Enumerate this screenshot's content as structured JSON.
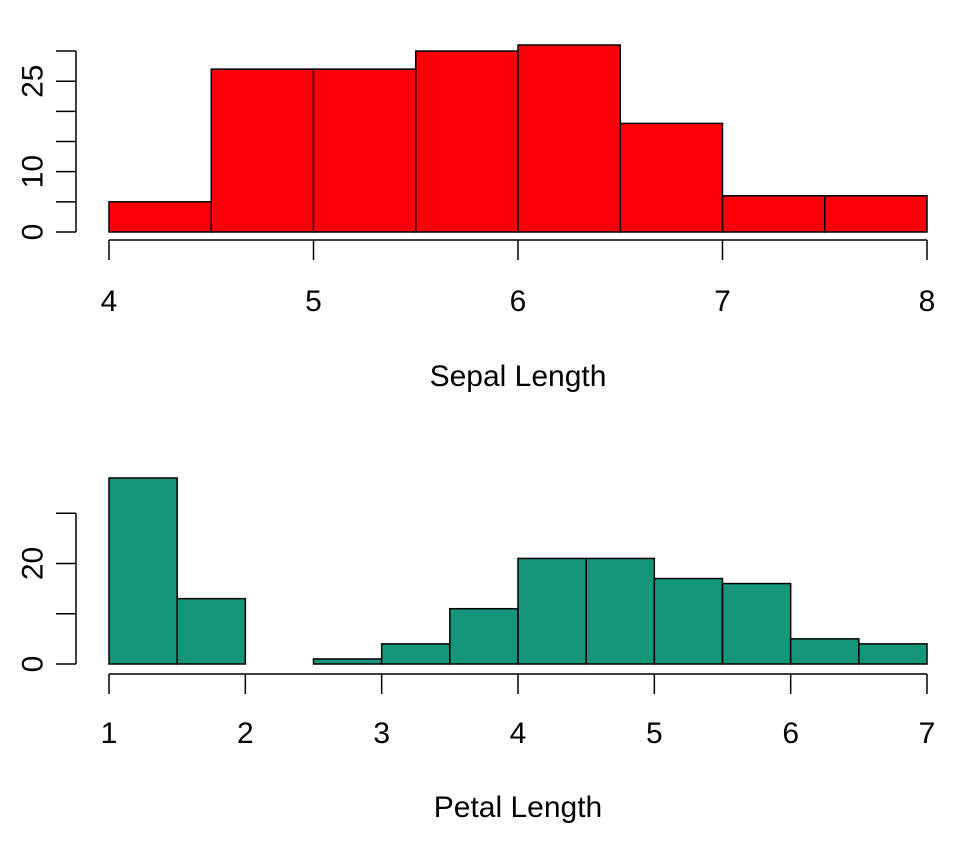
{
  "chart_data": [
    {
      "type": "bar",
      "xlabel": "Sepal Length",
      "bin_edges": [
        4,
        4.5,
        5,
        5.5,
        6,
        6.5,
        7,
        7.5,
        8
      ],
      "values": [
        5,
        27,
        27,
        30,
        31,
        18,
        6,
        6
      ],
      "xticks": [
        "4",
        "5",
        "6",
        "7",
        "8"
      ],
      "xlim": [
        4,
        8
      ],
      "yticks": [
        "0",
        "10",
        "25"
      ],
      "ylim": [
        0,
        31
      ],
      "color": "#fc0007"
    },
    {
      "type": "bar",
      "xlabel": "Petal Length",
      "bin_edges": [
        1,
        1.5,
        2,
        2.5,
        3,
        3.5,
        4,
        4.5,
        5,
        5.5,
        6,
        6.5,
        7
      ],
      "values": [
        37,
        13,
        0,
        1,
        4,
        11,
        21,
        21,
        17,
        16,
        5,
        4
      ],
      "xticks": [
        "1",
        "2",
        "3",
        "4",
        "5",
        "6",
        "7"
      ],
      "xlim": [
        1,
        7
      ],
      "yticks": [
        "0",
        "20"
      ],
      "ylim": [
        0,
        37
      ],
      "color": "#15967a"
    }
  ]
}
